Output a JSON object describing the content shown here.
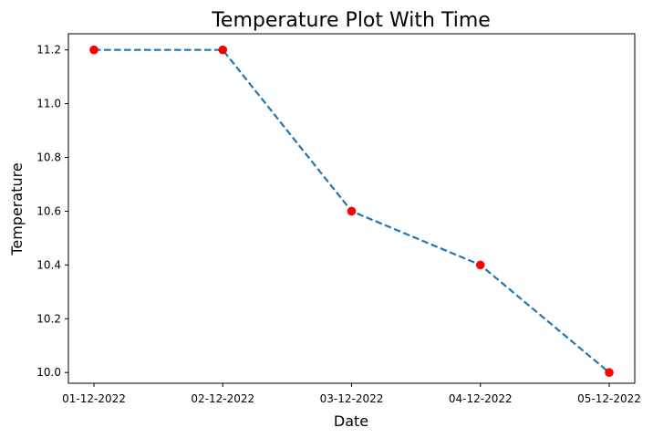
{
  "chart_data": {
    "type": "line",
    "title": "Temperature Plot With Time",
    "xlabel": "Date",
    "ylabel": "Temperature",
    "categories": [
      "01-12-2022",
      "02-12-2022",
      "03-12-2022",
      "04-12-2022",
      "05-12-2022"
    ],
    "values": [
      11.2,
      11.2,
      10.6,
      10.4,
      10.0
    ],
    "ylim": [
      9.96,
      11.26
    ],
    "yticks": [
      "10.0",
      "10.2",
      "10.4",
      "10.6",
      "10.8",
      "11.0",
      "11.2"
    ],
    "line_style": "dashed",
    "line_color": "#1f77b4",
    "marker_color": "#ff0000",
    "grid": false,
    "legend": "none"
  }
}
